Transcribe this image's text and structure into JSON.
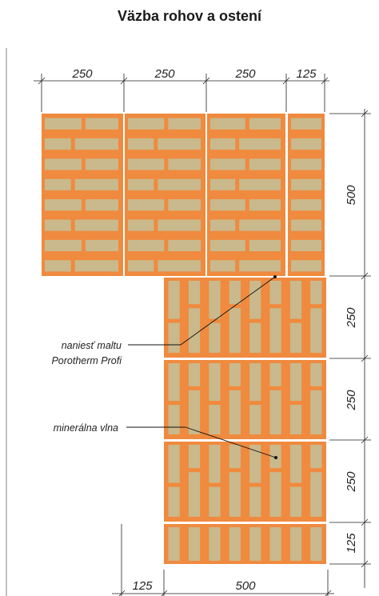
{
  "title": "Väzba rohov a ostení",
  "dimensions": {
    "top": [
      "250",
      "250",
      "250",
      "125"
    ],
    "right": [
      "500",
      "250",
      "250",
      "250",
      "125"
    ],
    "bottom": [
      "125",
      "500"
    ]
  },
  "labels": {
    "mortar_line1": "naniesť maltu",
    "mortar_line2": "Porotherm Profi",
    "wool": "minerálna vlna"
  },
  "colors": {
    "brick": "#f08a3e",
    "cavity": "#c9b98c",
    "frame_line": "#9a9a9a",
    "ink": "#222222"
  }
}
